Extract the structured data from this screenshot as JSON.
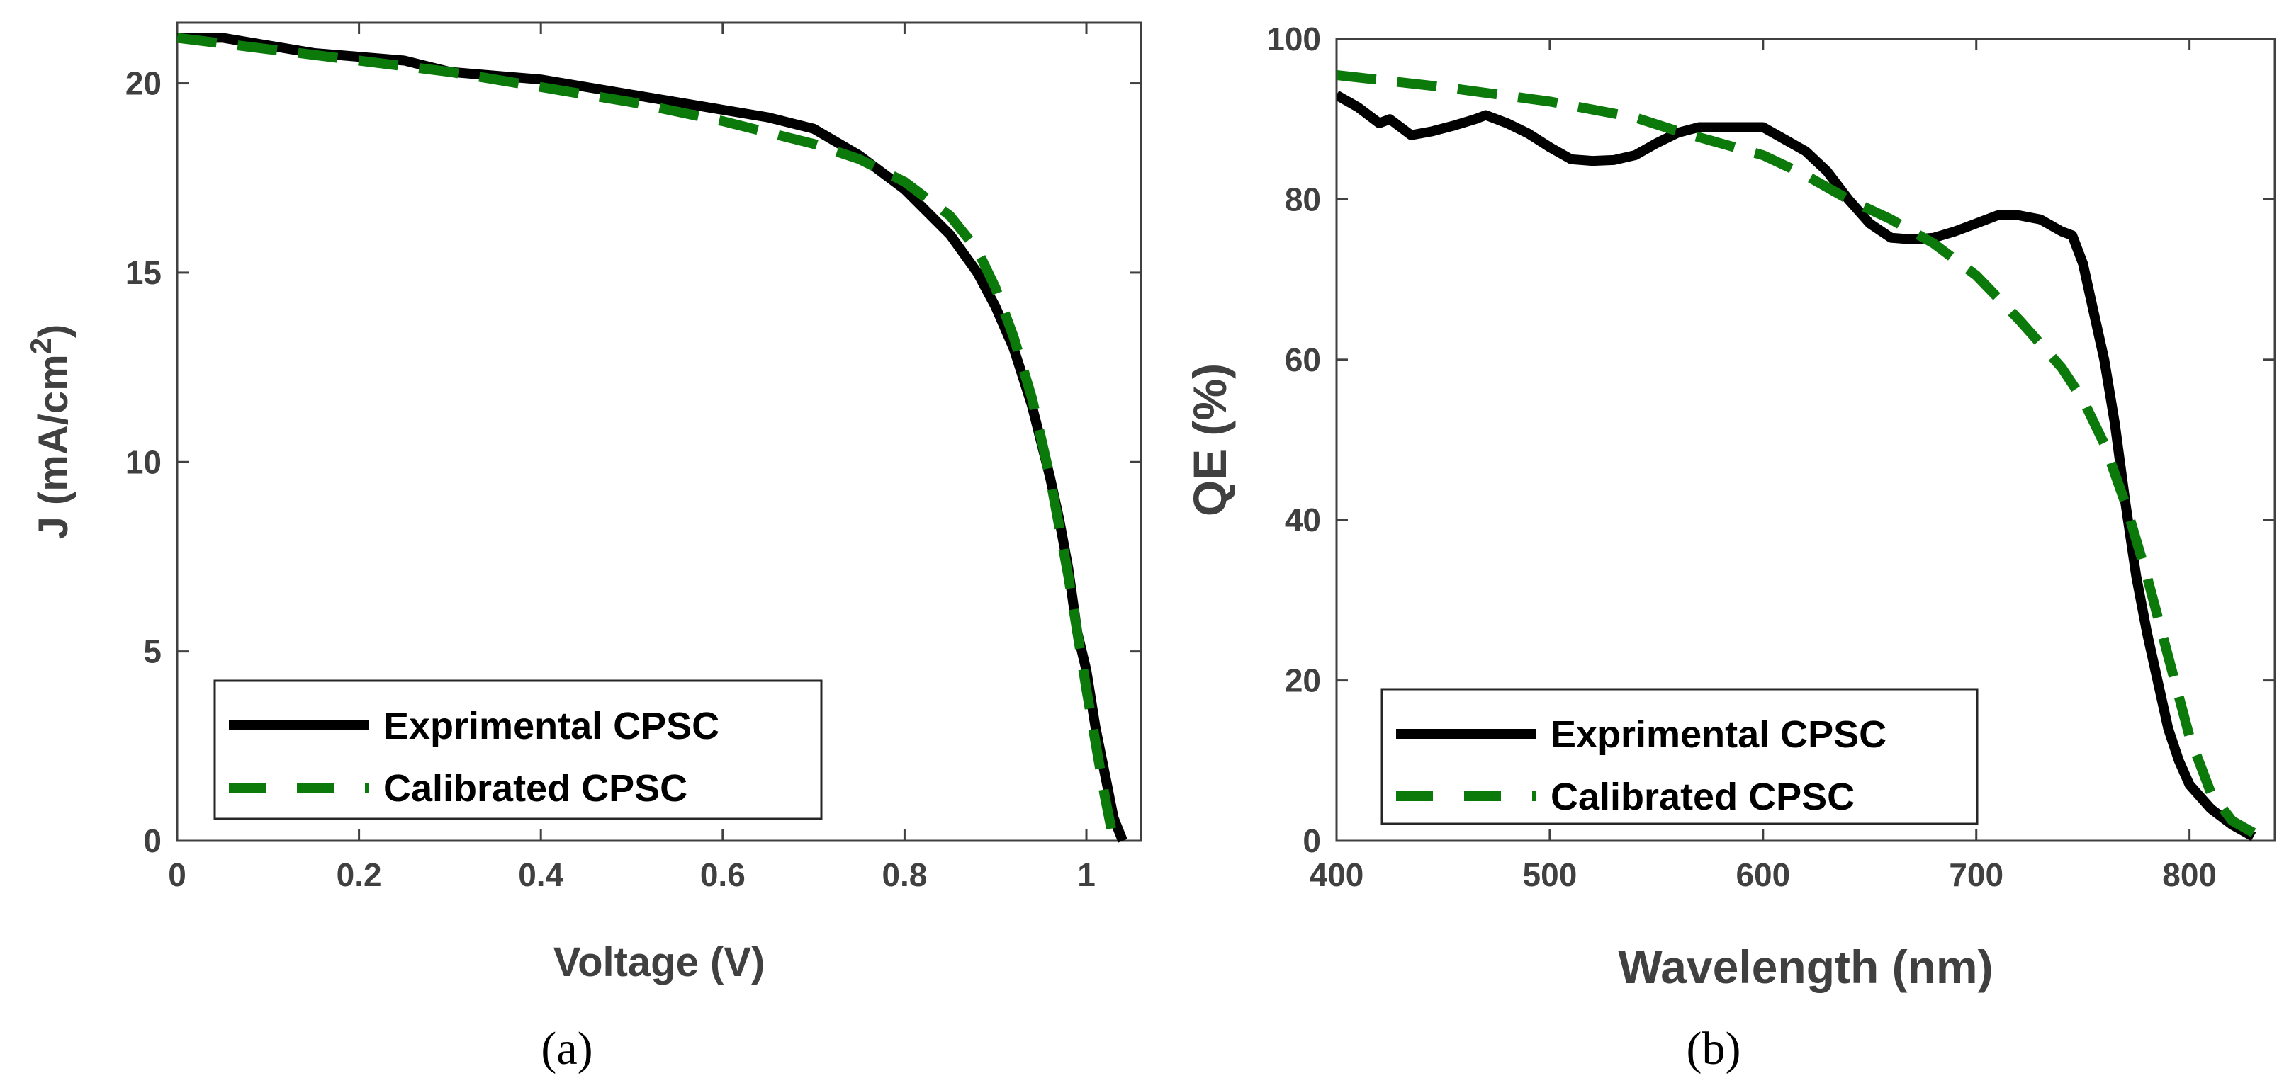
{
  "colors": {
    "experimental": "#000000",
    "calibrated": "#0b7a0b",
    "axis": "#404040"
  },
  "chart_data": [
    {
      "type": "line",
      "caption": "(a)",
      "xlabel": "Voltage (V)",
      "ylabel": "J (mA/cm",
      "ylabel_sup": "2",
      "ylabel_close": ")",
      "xlim": [
        0,
        1.06
      ],
      "ylim": [
        0,
        21.6
      ],
      "xticks": [
        0,
        0.2,
        0.4,
        0.6,
        0.8,
        1
      ],
      "xtick_labels": [
        "0",
        "0.2",
        "0.4",
        "0.6",
        "0.8",
        "1"
      ],
      "yticks": [
        0,
        5,
        10,
        15,
        20
      ],
      "ytick_labels": [
        "0",
        "5",
        "10",
        "15",
        "20"
      ],
      "legend": "bottom-left",
      "series": [
        {
          "name": "Exprimental CPSC",
          "style": "solid",
          "x": [
            0,
            0.05,
            0.1,
            0.15,
            0.2,
            0.25,
            0.3,
            0.35,
            0.4,
            0.45,
            0.5,
            0.55,
            0.6,
            0.65,
            0.7,
            0.75,
            0.8,
            0.85,
            0.88,
            0.9,
            0.92,
            0.94,
            0.96,
            0.97,
            0.98,
            0.99,
            1.0,
            1.01,
            1.02,
            1.03,
            1.04
          ],
          "y": [
            21.2,
            21.2,
            21.0,
            20.8,
            20.7,
            20.6,
            20.3,
            20.2,
            20.1,
            19.9,
            19.7,
            19.5,
            19.3,
            19.1,
            18.8,
            18.1,
            17.2,
            16.0,
            15.0,
            14.1,
            13.0,
            11.5,
            9.6,
            8.5,
            7.2,
            5.5,
            4.5,
            3.0,
            1.8,
            0.6,
            0
          ]
        },
        {
          "name": "Calibrated CPSC",
          "style": "dashed",
          "x": [
            0,
            0.1,
            0.2,
            0.3,
            0.4,
            0.5,
            0.6,
            0.7,
            0.75,
            0.8,
            0.85,
            0.88,
            0.9,
            0.92,
            0.94,
            0.96,
            0.98,
            1.0,
            1.02,
            1.03
          ],
          "y": [
            21.2,
            20.9,
            20.6,
            20.3,
            19.9,
            19.5,
            19.0,
            18.4,
            18.0,
            17.4,
            16.5,
            15.6,
            14.6,
            13.3,
            11.7,
            9.6,
            7.0,
            4.0,
            1.2,
            0
          ]
        }
      ]
    },
    {
      "type": "line",
      "caption": "(b)",
      "xlabel": "Wavelength (nm)",
      "ylabel": "QE (%)",
      "xlim": [
        400,
        840
      ],
      "ylim": [
        0,
        100
      ],
      "xticks": [
        400,
        500,
        600,
        700,
        800
      ],
      "xtick_labels": [
        "400",
        "500",
        "600",
        "700",
        "800"
      ],
      "yticks": [
        0,
        20,
        40,
        60,
        80,
        100
      ],
      "ytick_labels": [
        "0",
        "20",
        "40",
        "60",
        "80",
        "100"
      ],
      "legend": "bottom-left",
      "series": [
        {
          "name": "Exprimental CPSC",
          "style": "solid",
          "x": [
            400,
            410,
            420,
            425,
            435,
            445,
            455,
            465,
            470,
            480,
            490,
            500,
            510,
            520,
            530,
            540,
            550,
            560,
            570,
            580,
            590,
            600,
            610,
            620,
            630,
            640,
            650,
            660,
            670,
            680,
            690,
            700,
            710,
            720,
            730,
            740,
            745,
            750,
            755,
            760,
            765,
            770,
            775,
            780,
            785,
            790,
            795,
            800,
            810,
            820,
            830
          ],
          "y": [
            93,
            91.5,
            89.5,
            90,
            88,
            88.5,
            89.2,
            90,
            90.5,
            89.5,
            88.2,
            86.5,
            85,
            84.8,
            84.9,
            85.5,
            87,
            88.3,
            89,
            89,
            89,
            89,
            87.5,
            86,
            83.5,
            80,
            77,
            75.2,
            75,
            75.2,
            76,
            77,
            78,
            78,
            77.5,
            76,
            75.5,
            72,
            66,
            60,
            52,
            42,
            33,
            26,
            20,
            14,
            10,
            7,
            4,
            2,
            0.5
          ]
        },
        {
          "name": "Calibrated CPSC",
          "style": "dashed",
          "x": [
            400,
            450,
            500,
            540,
            560,
            580,
            600,
            620,
            640,
            660,
            680,
            700,
            720,
            740,
            750,
            760,
            770,
            780,
            790,
            800,
            810,
            820,
            830
          ],
          "y": [
            95.5,
            94,
            92.2,
            90.2,
            88.5,
            87,
            85.5,
            83,
            80,
            77.5,
            74.5,
            70.5,
            65,
            59,
            55,
            49.5,
            42,
            33,
            23,
            13,
            6,
            2.5,
            1
          ]
        }
      ]
    }
  ]
}
